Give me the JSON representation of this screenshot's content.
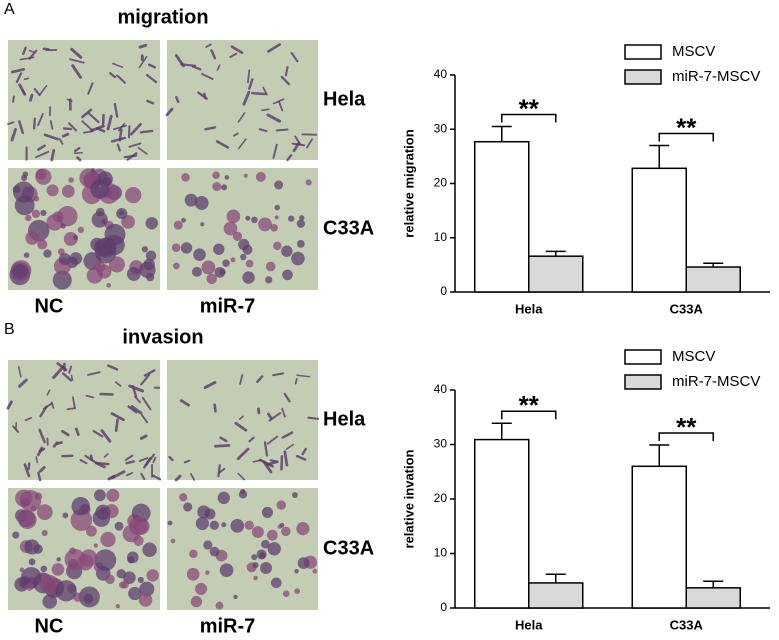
{
  "chart_data": [
    {
      "type": "bar",
      "ylabel": "relative migration",
      "categories": [
        "Hela",
        "C33A"
      ],
      "series": [
        {
          "name": "MSCV",
          "color": "#ffffff",
          "values": [
            27.7,
            22.8
          ],
          "errors": [
            2.8,
            4.2
          ]
        },
        {
          "name": "miR-7-MSCV",
          "color": "#d9d9d9",
          "values": [
            6.6,
            4.6
          ],
          "errors": [
            0.9,
            0.7
          ]
        }
      ],
      "annotations": [
        "**",
        "**"
      ],
      "ylim": [
        0,
        40
      ],
      "yticks": [
        0,
        10,
        20,
        30,
        40
      ]
    },
    {
      "type": "bar",
      "ylabel": "relative invation",
      "categories": [
        "Hela",
        "C33A"
      ],
      "series": [
        {
          "name": "MSCV",
          "color": "#ffffff",
          "values": [
            30.9,
            26.0
          ],
          "errors": [
            3.0,
            3.9
          ]
        },
        {
          "name": "miR-7-MSCV",
          "color": "#d9d9d9",
          "values": [
            4.6,
            3.7
          ],
          "errors": [
            1.6,
            1.2
          ]
        }
      ],
      "annotations": [
        "**",
        "**"
      ],
      "ylim": [
        0,
        40
      ],
      "yticks": [
        0,
        10,
        20,
        30,
        40
      ]
    }
  ],
  "panels": [
    {
      "label": "A",
      "title": "migration",
      "row_labels": [
        "Hela",
        "C33A"
      ],
      "col_labels": [
        "NC",
        "miR-7"
      ]
    },
    {
      "label": "B",
      "title": "invasion",
      "row_labels": [
        "Hela",
        "C33A"
      ],
      "col_labels": [
        "NC",
        "miR-7"
      ]
    }
  ]
}
